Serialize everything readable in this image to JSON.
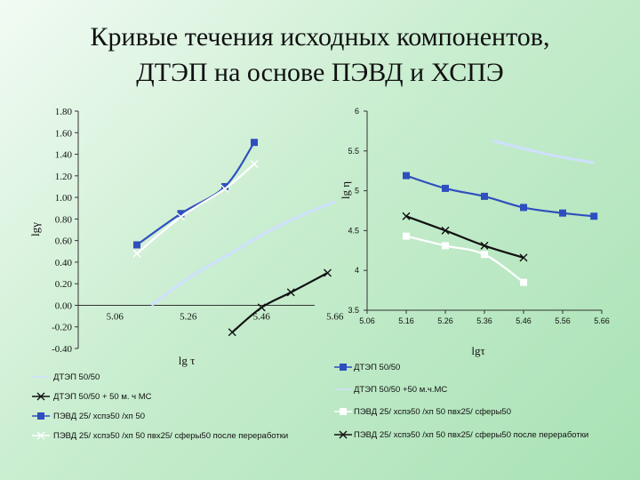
{
  "title_line1": "Кривые течения исходных компонентов,",
  "title_line2": "ДТЭП на основе ПЭВД и ХСПЭ",
  "colors": {
    "blue": "#2f4fbe",
    "black": "#111111",
    "white": "#ffffff",
    "light_blue": "#cfe0ff"
  },
  "chart_data": [
    {
      "type": "line",
      "xlabel": "lg τ",
      "ylabel": "lgγ",
      "xlim": [
        4.96,
        5.76
      ],
      "ylim": [
        -0.4,
        1.8
      ],
      "xticks": [
        "5.06",
        "5.26",
        "5.46",
        "5.66"
      ],
      "xtick_values": [
        5.06,
        5.26,
        5.46,
        5.66
      ],
      "yticks": [
        "1.80",
        "1.60",
        "1.40",
        "1.20",
        "1.00",
        "0.80",
        "0.60",
        "0.40",
        "0.20",
        "0.00",
        "-0.20",
        "-0.40"
      ],
      "ytick_values": [
        1.8,
        1.6,
        1.4,
        1.2,
        1.0,
        0.8,
        0.6,
        0.4,
        0.2,
        0.0,
        -0.2,
        -0.4
      ],
      "series": [
        {
          "name": "ДТЭП 50/50",
          "color": "light_blue",
          "marker": "none",
          "x": [
            5.16,
            5.26,
            5.36,
            5.46,
            5.56,
            5.66
          ],
          "y": [
            0.0,
            0.25,
            0.45,
            0.65,
            0.82,
            0.96
          ]
        },
        {
          "name": "ДТЭП 50/50 + 50 м. ч МС",
          "color": "black",
          "marker": "x",
          "x": [
            5.38,
            5.46,
            5.54,
            5.64
          ],
          "y": [
            -0.25,
            -0.02,
            0.12,
            0.3
          ]
        },
        {
          "name": "ПЭВД 25/ хспэ50 /хп 50",
          "color": "blue",
          "marker": "square",
          "x": [
            5.12,
            5.24,
            5.36,
            5.44
          ],
          "y": [
            0.56,
            0.85,
            1.1,
            1.51
          ]
        },
        {
          "name": "ПЭВД 25/ хспэ50 /хп 50   пвх25/ сферы50  после переработки",
          "color": "white",
          "marker": "x",
          "x": [
            5.12,
            5.24,
            5.36,
            5.44
          ],
          "y": [
            0.48,
            0.82,
            1.08,
            1.31
          ]
        }
      ]
    },
    {
      "type": "line",
      "xlabel": "lgτ",
      "ylabel": "lg η",
      "xlim": [
        5.06,
        5.66
      ],
      "ylim": [
        3.5,
        6.0
      ],
      "xticks": [
        "5.06",
        "5.16",
        "5.26",
        "5.36",
        "5.46",
        "5.56",
        "5.66"
      ],
      "xtick_values": [
        5.06,
        5.16,
        5.26,
        5.36,
        5.46,
        5.56,
        5.66
      ],
      "yticks": [
        "6",
        "5.5",
        "5",
        "4.5",
        "4",
        "3.5"
      ],
      "ytick_values": [
        6.0,
        5.5,
        5.0,
        4.5,
        4.0,
        3.5
      ],
      "series": [
        {
          "name": "ДТЭП 50/50",
          "color": "blue",
          "marker": "square",
          "x": [
            5.16,
            5.26,
            5.36,
            5.46,
            5.56,
            5.64
          ],
          "y": [
            5.19,
            5.03,
            4.93,
            4.79,
            4.72,
            4.68
          ]
        },
        {
          "name": "ДТЭП 50/50 +50 м.ч.МС",
          "color": "light_blue",
          "marker": "none",
          "x": [
            5.38,
            5.46,
            5.54,
            5.64
          ],
          "y": [
            5.63,
            5.53,
            5.44,
            5.35
          ]
        },
        {
          "name": "ПЭВД 25/ хспэ50 /хп 50      пвх25/ сферы50",
          "color": "white",
          "marker": "square",
          "x": [
            5.16,
            5.26,
            5.36,
            5.46
          ],
          "y": [
            4.43,
            4.31,
            4.2,
            3.85
          ]
        },
        {
          "name": "ПЭВД 25/ хспэ50 /хп 50      пвх25/ сферы50  после переработки",
          "color": "black",
          "marker": "x",
          "x": [
            5.16,
            5.26,
            5.36,
            5.46
          ],
          "y": [
            4.68,
            4.5,
            4.31,
            4.16
          ]
        }
      ]
    }
  ]
}
